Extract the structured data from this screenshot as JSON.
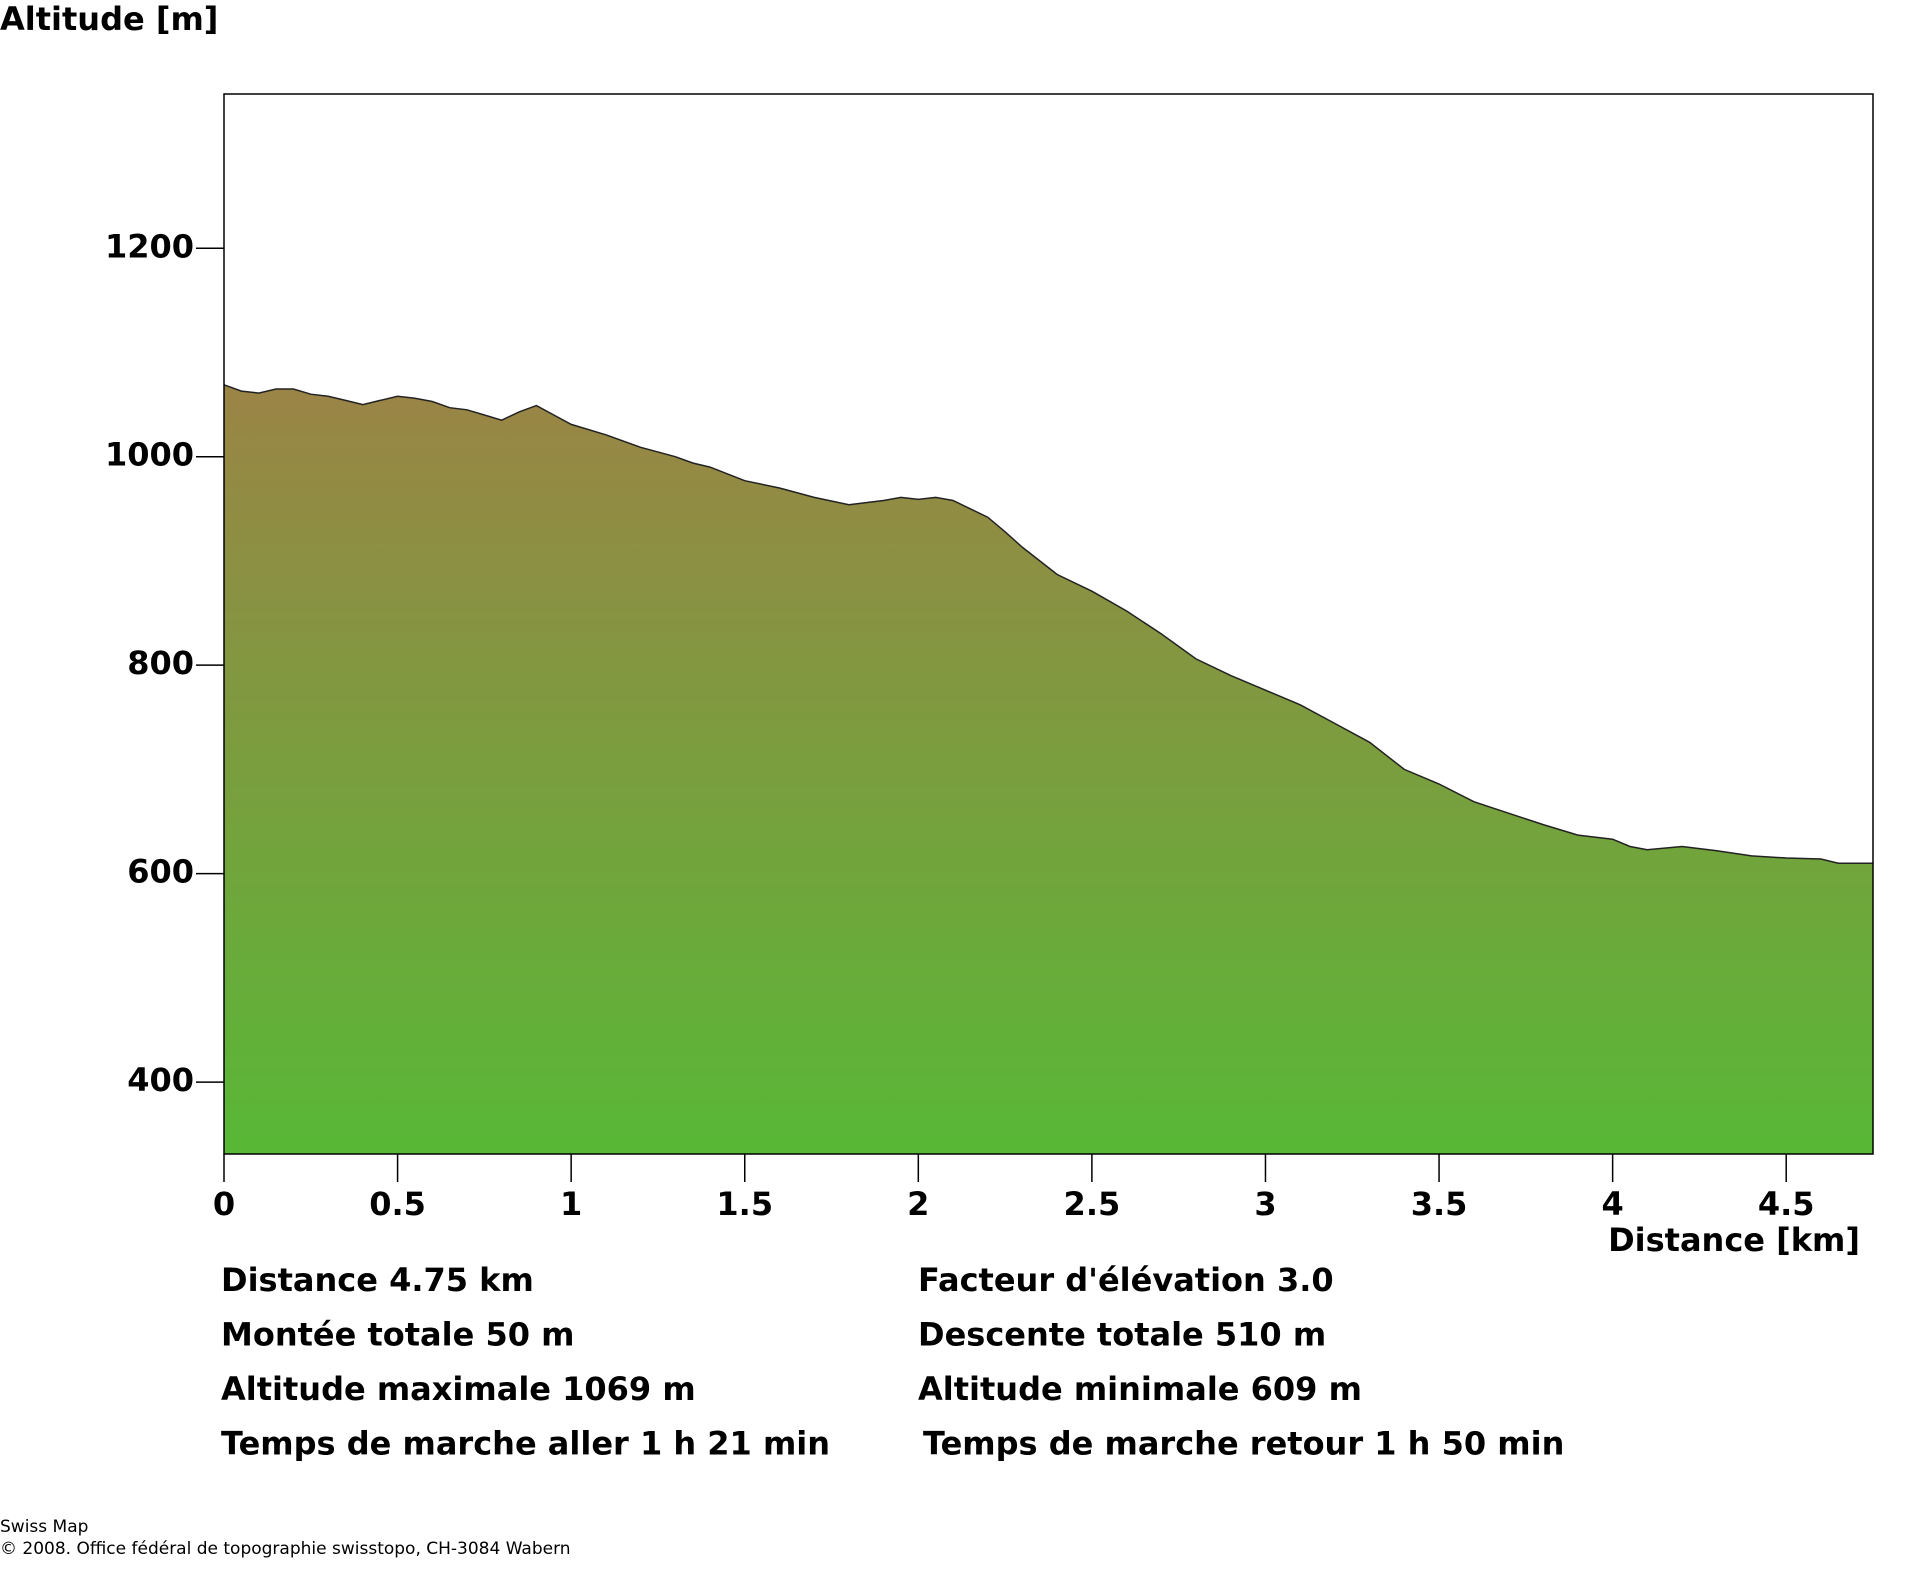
{
  "chart_data": {
    "type": "area",
    "ylabel": "Altitude [m]",
    "xlabel": "Distance [km]",
    "xlim": [
      0,
      4.75
    ],
    "ylim": [
      331,
      1348
    ],
    "xticks": [
      0,
      0.5,
      1,
      1.5,
      2,
      2.5,
      3,
      3.5,
      4,
      4.5
    ],
    "yticks": [
      400,
      600,
      800,
      1000,
      1200
    ],
    "gradient": [
      "#9b8446",
      "#58b836"
    ],
    "line_color": "#222222",
    "x": [
      0,
      0.05,
      0.1,
      0.15,
      0.2,
      0.25,
      0.3,
      0.35,
      0.4,
      0.45,
      0.5,
      0.55,
      0.6,
      0.65,
      0.7,
      0.75,
      0.8,
      0.85,
      0.9,
      0.95,
      1.0,
      1.1,
      1.2,
      1.3,
      1.35,
      1.4,
      1.5,
      1.6,
      1.7,
      1.8,
      1.9,
      1.95,
      2.0,
      2.05,
      2.1,
      2.2,
      2.25,
      2.3,
      2.4,
      2.5,
      2.6,
      2.7,
      2.8,
      2.9,
      3.0,
      3.1,
      3.2,
      3.3,
      3.4,
      3.5,
      3.6,
      3.7,
      3.8,
      3.9,
      4.0,
      4.05,
      4.1,
      4.2,
      4.3,
      4.4,
      4.5,
      4.6,
      4.65,
      4.75
    ],
    "values": [
      1069,
      1063,
      1061,
      1065,
      1065,
      1060,
      1058,
      1054,
      1050,
      1054,
      1058,
      1056,
      1053,
      1047,
      1045,
      1040,
      1035,
      1043,
      1049,
      1040,
      1031,
      1021,
      1009,
      1000,
      994,
      990,
      977,
      970,
      961,
      954,
      958,
      961,
      959,
      961,
      958,
      942,
      928,
      913,
      887,
      871,
      852,
      830,
      806,
      790,
      776,
      762,
      744,
      726,
      700,
      686,
      669,
      658,
      647,
      637,
      633,
      626,
      623,
      626,
      622,
      617,
      615,
      614,
      610,
      610
    ],
    "stats_left": [
      "Distance 4.75 km",
      "Montée totale  50 m",
      "Altitude maximale  1069 m",
      "Temps de marche aller  1 h 21 min"
    ],
    "stats_right": [
      "Facteur d'élévation 3.0",
      "Descente totale  510 m",
      "Altitude minimale  609 m",
      "Temps de marche retour  1 h 50 min"
    ],
    "footer": [
      "Swiss Map",
      "© 2008. Office fédéral de topographie swisstopo, CH-3084 Wabern"
    ]
  }
}
